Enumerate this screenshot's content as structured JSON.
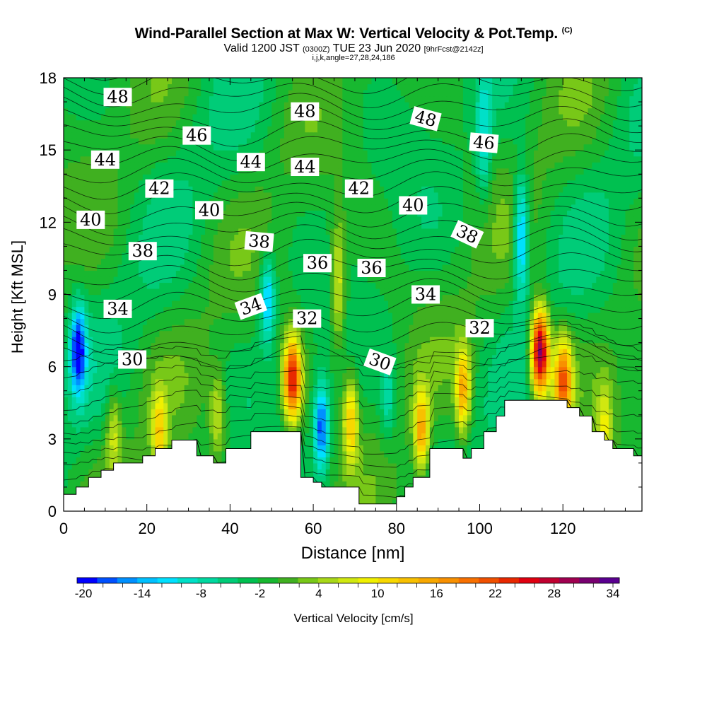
{
  "header": {
    "title": "Wind-Parallel Section at Max W: Vertical Velocity & Pot.Temp.",
    "copyright": "(C)",
    "valid_prefix": "Valid 1200 JST",
    "valid_utc": "(0300Z)",
    "valid_date": "TUE 23 Jun 2020",
    "forecast_note": "[9hrFcst@2142z]",
    "indices": "i,j,k,angle=27,28,24,186"
  },
  "chart_data": {
    "type": "heatmap",
    "xlabel": "Distance [nm]",
    "ylabel": "Height [Kft MSL]",
    "xlim": [
      0,
      139
    ],
    "ylim": [
      0,
      18
    ],
    "x_ticks": [
      0,
      20,
      40,
      60,
      80,
      100,
      120
    ],
    "y_ticks": [
      0,
      3,
      6,
      9,
      12,
      15,
      18
    ],
    "colorbar": {
      "label": "Vertical Velocity [cm/s]",
      "min": -20,
      "max": 34,
      "step": 2,
      "tick_labels": [
        -20,
        -14,
        -8,
        -2,
        4,
        10,
        16,
        22,
        28,
        34
      ]
    },
    "velocity_features": [
      {
        "x": 3.5,
        "y": 6.7,
        "value": -18
      },
      {
        "x": 12,
        "y": 3.3,
        "value": 8
      },
      {
        "x": 23,
        "y": 3.2,
        "value": 12
      },
      {
        "x": 37,
        "y": 4.0,
        "value": 8
      },
      {
        "x": 49,
        "y": 8.8,
        "value": -12
      },
      {
        "x": 55,
        "y": 5.5,
        "value": 26
      },
      {
        "x": 62,
        "y": 3.5,
        "value": -16
      },
      {
        "x": 66,
        "y": 9.5,
        "value": 10
      },
      {
        "x": 69,
        "y": 3.8,
        "value": 14
      },
      {
        "x": 78,
        "y": 4.6,
        "value": -6
      },
      {
        "x": 86,
        "y": 3.3,
        "value": 16
      },
      {
        "x": 96,
        "y": 5.0,
        "value": 16
      },
      {
        "x": 101,
        "y": 15.5,
        "value": -8
      },
      {
        "x": 110,
        "y": 11.5,
        "value": -14
      },
      {
        "x": 114.5,
        "y": 6.6,
        "value": 34
      },
      {
        "x": 120,
        "y": 5.4,
        "value": 22
      },
      {
        "x": 130,
        "y": 3.5,
        "value": 8
      }
    ],
    "terrain": [
      [
        0,
        0.7
      ],
      [
        3,
        1.0
      ],
      [
        6,
        1.4
      ],
      [
        9,
        1.7
      ],
      [
        12,
        2.0
      ],
      [
        19,
        2.3
      ],
      [
        22,
        2.6
      ],
      [
        26,
        2.95
      ],
      [
        32,
        2.3
      ],
      [
        36,
        2.0
      ],
      [
        39,
        2.6
      ],
      [
        45,
        3.3
      ],
      [
        55,
        3.3
      ],
      [
        57,
        1.4
      ],
      [
        60,
        1.2
      ],
      [
        62,
        1.0
      ],
      [
        71,
        0.3
      ],
      [
        80,
        0.6
      ],
      [
        82,
        1.0
      ],
      [
        84,
        1.4
      ],
      [
        88,
        2.6
      ],
      [
        96,
        2.2
      ],
      [
        98,
        2.6
      ],
      [
        101,
        3.3
      ],
      [
        104,
        3.95
      ],
      [
        106,
        4.6
      ],
      [
        121,
        4.3
      ],
      [
        124,
        3.95
      ],
      [
        127,
        3.3
      ],
      [
        130,
        2.95
      ],
      [
        132,
        2.6
      ],
      [
        134,
        2.6
      ],
      [
        137,
        2.3
      ],
      [
        139,
        2.3
      ]
    ],
    "theta_contour_labels": [
      {
        "text": "48",
        "x": 13,
        "y": 17.2,
        "angle": 0
      },
      {
        "text": "48",
        "x": 58,
        "y": 16.6,
        "angle": 0
      },
      {
        "text": "48",
        "x": 87,
        "y": 16.3,
        "angle": 15
      },
      {
        "text": "46",
        "x": 32,
        "y": 15.6,
        "angle": 0
      },
      {
        "text": "46",
        "x": 101,
        "y": 15.3,
        "angle": 5
      },
      {
        "text": "44",
        "x": 10,
        "y": 14.6,
        "angle": 0
      },
      {
        "text": "44",
        "x": 45,
        "y": 14.5,
        "angle": 0
      },
      {
        "text": "44",
        "x": 58,
        "y": 14.3,
        "angle": 0
      },
      {
        "text": "42",
        "x": 23,
        "y": 13.4,
        "angle": 0
      },
      {
        "text": "42",
        "x": 71,
        "y": 13.4,
        "angle": 0
      },
      {
        "text": "40",
        "x": 6.5,
        "y": 12.1,
        "angle": 0
      },
      {
        "text": "40",
        "x": 35,
        "y": 12.5,
        "angle": 0
      },
      {
        "text": "40",
        "x": 84,
        "y": 12.7,
        "angle": 0
      },
      {
        "text": "38",
        "x": 19,
        "y": 10.8,
        "angle": 0
      },
      {
        "text": "38",
        "x": 47,
        "y": 11.2,
        "angle": 5
      },
      {
        "text": "38",
        "x": 97,
        "y": 11.5,
        "angle": 25
      },
      {
        "text": "36",
        "x": 61,
        "y": 10.3,
        "angle": 0
      },
      {
        "text": "36",
        "x": 74,
        "y": 10.1,
        "angle": 0
      },
      {
        "text": "34",
        "x": 13,
        "y": 8.4,
        "angle": 0
      },
      {
        "text": "34",
        "x": 45,
        "y": 8.5,
        "angle": -20
      },
      {
        "text": "34",
        "x": 87,
        "y": 9.0,
        "angle": 0
      },
      {
        "text": "32",
        "x": 58.5,
        "y": 8.0,
        "angle": 0
      },
      {
        "text": "32",
        "x": 100,
        "y": 7.6,
        "angle": 0
      },
      {
        "text": "30",
        "x": 16.5,
        "y": 6.3,
        "angle": 0
      },
      {
        "text": "30",
        "x": 76,
        "y": 6.2,
        "angle": 20
      }
    ]
  }
}
